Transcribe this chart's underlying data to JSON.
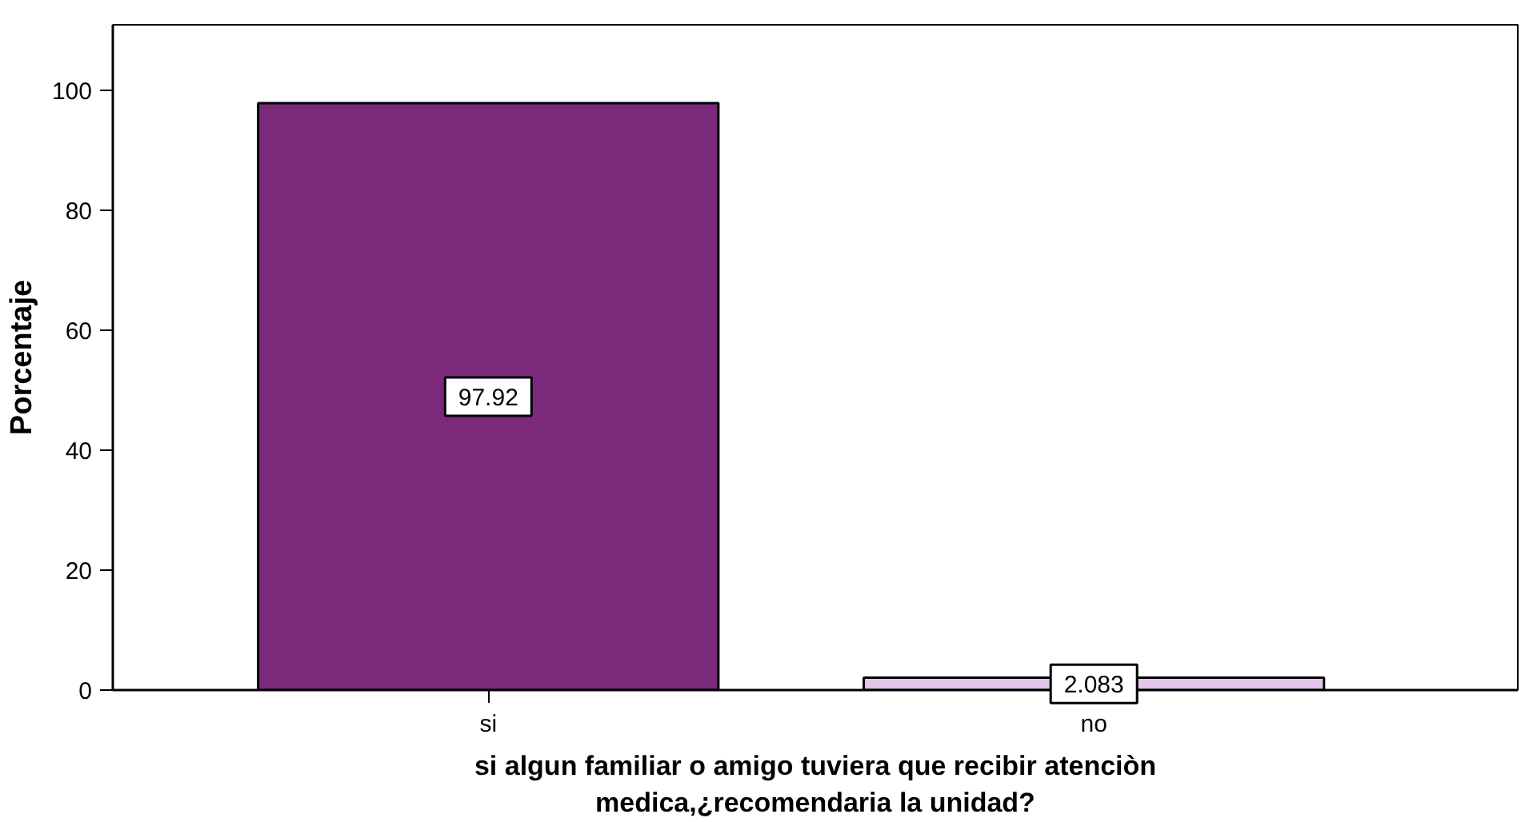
{
  "chart_data": {
    "type": "bar",
    "xlabel": "si algun familiar o amigo tuviera que recibir atenciòn\nmedica,¿recomendaria la unidad?",
    "ylabel": "Porcentaje",
    "categories": [
      "si",
      "no"
    ],
    "values": [
      97.92,
      2.083
    ],
    "colors": [
      "#7b2a7b",
      "#e4c6ec"
    ],
    "ylim": [
      0,
      111
    ],
    "yticks": [
      0,
      20,
      40,
      60,
      80,
      100
    ],
    "data_labels": true,
    "grid": false
  }
}
